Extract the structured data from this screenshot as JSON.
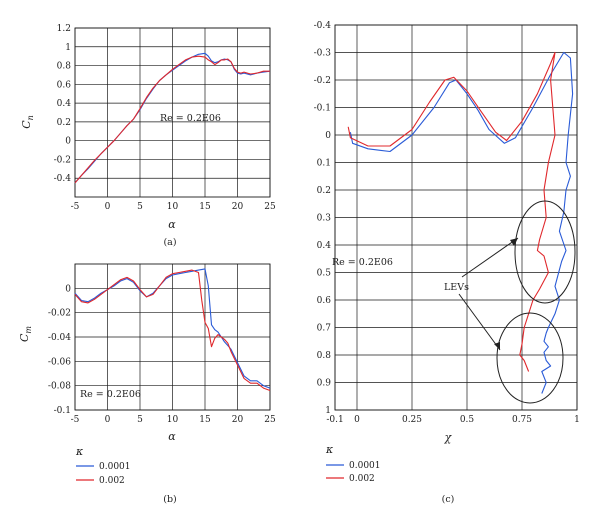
{
  "colors": {
    "blue": "#2a5bd7",
    "red": "#e0282c",
    "grid": "#1a1a1a",
    "text": "#222222"
  },
  "chart_data": [
    {
      "type": "line",
      "panel": "(a)",
      "xlabel": "α",
      "ylabel": "Cn",
      "ylabel_main": "C",
      "ylabel_sub": "n",
      "xlim": [
        -5,
        25
      ],
      "ylim": [
        -0.6,
        1.2
      ],
      "xticks": [
        -5,
        0,
        5,
        10,
        15,
        20,
        25
      ],
      "yticks": [
        -0.4,
        -0.2,
        0,
        0.2,
        0.4,
        0.6,
        0.8,
        1,
        1.2
      ],
      "ytick_labels": [
        "-0.4",
        "-0.2",
        "0",
        "0.2",
        "0.4",
        "0.6",
        "0.8",
        "1",
        "1.2"
      ],
      "annotation": "Re = 0.2E06",
      "series": [
        {
          "name": "0.0001",
          "color": "#2a5bd7",
          "x": [
            -5,
            -4,
            -3,
            -2,
            -1,
            0,
            1,
            2,
            3,
            4,
            5,
            6,
            7,
            8,
            9,
            10,
            11,
            12,
            13,
            14,
            15,
            15.5,
            16,
            16.5,
            17,
            17.5,
            18,
            18.5,
            19,
            19.5,
            20,
            20.5,
            21,
            22,
            23,
            24,
            25
          ],
          "y": [
            -0.45,
            -0.37,
            -0.3,
            -0.22,
            -0.14,
            -0.07,
            0.0,
            0.08,
            0.16,
            0.23,
            0.33,
            0.45,
            0.55,
            0.64,
            0.7,
            0.75,
            0.8,
            0.85,
            0.89,
            0.92,
            0.93,
            0.9,
            0.85,
            0.83,
            0.84,
            0.86,
            0.87,
            0.86,
            0.84,
            0.76,
            0.72,
            0.71,
            0.72,
            0.7,
            0.72,
            0.73,
            0.74
          ]
        },
        {
          "name": "0.002",
          "color": "#e0282c",
          "x": [
            -5,
            -4,
            -3,
            -2,
            -1,
            0,
            1,
            2,
            3,
            4,
            5,
            6,
            7,
            8,
            9,
            10,
            11,
            12,
            13,
            14,
            15,
            15.5,
            16,
            16.5,
            17,
            17.5,
            18,
            18.5,
            19,
            19.5,
            20,
            20.5,
            21,
            22,
            23,
            24,
            25
          ],
          "y": [
            -0.45,
            -0.37,
            -0.29,
            -0.21,
            -0.14,
            -0.07,
            0.0,
            0.08,
            0.16,
            0.23,
            0.34,
            0.46,
            0.56,
            0.64,
            0.7,
            0.76,
            0.81,
            0.86,
            0.89,
            0.9,
            0.89,
            0.86,
            0.84,
            0.81,
            0.83,
            0.86,
            0.86,
            0.87,
            0.84,
            0.77,
            0.73,
            0.72,
            0.73,
            0.71,
            0.72,
            0.74,
            0.74
          ]
        }
      ]
    },
    {
      "type": "line",
      "panel": "(b)",
      "xlabel": "α",
      "ylabel": "Cm",
      "ylabel_main": "C",
      "ylabel_sub": "m",
      "xlim": [
        -5,
        25
      ],
      "ylim": [
        -0.1,
        0.02
      ],
      "xticks": [
        -5,
        0,
        5,
        10,
        15,
        20,
        25
      ],
      "yticks": [
        0,
        -0.02,
        -0.04,
        -0.06,
        -0.08,
        -0.1
      ],
      "ytick_labels": [
        "0",
        "-0.02",
        "-0.04",
        "-0.06",
        "-0.08",
        "-0.1"
      ],
      "annotation": "Re = 0.2E06",
      "legend": {
        "title": "κ",
        "placement": "below",
        "entries": [
          "0.0001",
          "0.002"
        ]
      },
      "series": [
        {
          "name": "0.0001",
          "color": "#2a5bd7",
          "x": [
            -5,
            -4,
            -3,
            -2,
            -1,
            0,
            1,
            2,
            3,
            4,
            5,
            6,
            7,
            8,
            9,
            10,
            11,
            12,
            13,
            14,
            15,
            15.5,
            16,
            16.5,
            17,
            17.5,
            18,
            18.5,
            19,
            20,
            21,
            22,
            23,
            24,
            25
          ],
          "y": [
            -0.004,
            -0.01,
            -0.011,
            -0.008,
            -0.004,
            -0.001,
            0.002,
            0.006,
            0.008,
            0.005,
            -0.002,
            -0.007,
            -0.004,
            0.002,
            0.008,
            0.011,
            0.012,
            0.013,
            0.014,
            0.015,
            0.016,
            0.002,
            -0.03,
            -0.034,
            -0.036,
            -0.04,
            -0.044,
            -0.047,
            -0.05,
            -0.061,
            -0.072,
            -0.076,
            -0.076,
            -0.08,
            -0.082
          ]
        },
        {
          "name": "0.002",
          "color": "#e0282c",
          "x": [
            -5,
            -4,
            -3,
            -2,
            -1,
            0,
            1,
            2,
            3,
            4,
            5,
            6,
            7,
            8,
            9,
            10,
            11,
            12,
            13,
            14,
            14.5,
            15,
            15.5,
            16,
            16.5,
            17,
            17.5,
            18,
            18.5,
            19,
            20,
            21,
            22,
            23,
            24,
            25
          ],
          "y": [
            -0.005,
            -0.011,
            -0.012,
            -0.009,
            -0.005,
            -0.001,
            0.003,
            0.007,
            0.009,
            0.006,
            -0.001,
            -0.007,
            -0.005,
            0.002,
            0.009,
            0.012,
            0.013,
            0.014,
            0.015,
            0.013,
            -0.01,
            -0.028,
            -0.033,
            -0.048,
            -0.041,
            -0.038,
            -0.04,
            -0.042,
            -0.045,
            -0.052,
            -0.063,
            -0.074,
            -0.078,
            -0.078,
            -0.082,
            -0.084
          ]
        }
      ]
    },
    {
      "type": "line",
      "panel": "(c)",
      "xlabel": "χ",
      "ylabel": "",
      "xlim": [
        -0.1,
        1
      ],
      "ylim": [
        1,
        -0.4
      ],
      "xticks": [
        -0.1,
        0,
        0.25,
        0.5,
        0.75,
        1
      ],
      "xtick_labels": [
        "-0.1",
        "0",
        "0.25",
        "0.5",
        "0.75",
        "1"
      ],
      "yticks": [
        -0.4,
        -0.3,
        -0.2,
        -0.1,
        0,
        0.1,
        0.2,
        0.3,
        0.4,
        0.5,
        0.6,
        0.7,
        0.8,
        0.9,
        1
      ],
      "ytick_labels": [
        "-0.4",
        "-0.3",
        "-0.2",
        "-0.1",
        "0",
        "0.1",
        "0.2",
        "0.3",
        "0.4",
        "0.5",
        "0.6",
        "0.7",
        "0.8",
        "0.9",
        "1"
      ],
      "annotation": "Re = 0.2E06",
      "callout": "LEVs",
      "legend": {
        "title": "κ",
        "placement": "below",
        "entries": [
          "0.0001",
          "0.002"
        ]
      },
      "series": [
        {
          "name": "0.0001",
          "color": "#2a5bd7",
          "x": [
            -0.03,
            -0.02,
            0.05,
            0.15,
            0.25,
            0.35,
            0.42,
            0.45,
            0.5,
            0.55,
            0.6,
            0.67,
            0.72,
            0.8,
            0.88,
            0.94,
            0.97,
            0.98,
            0.96,
            0.95,
            0.97,
            0.95,
            0.94,
            0.92,
            0.95,
            0.93,
            0.9,
            0.92,
            0.9,
            0.87,
            0.86,
            0.85,
            0.87,
            0.85,
            0.86,
            0.88,
            0.84,
            0.86,
            0.85,
            0.84
          ],
          "y": [
            -0.01,
            0.03,
            0.05,
            0.06,
            0.0,
            -0.1,
            -0.19,
            -0.2,
            -0.15,
            -0.09,
            -0.02,
            0.03,
            0.01,
            -0.1,
            -0.22,
            -0.3,
            -0.28,
            -0.15,
            0.0,
            0.1,
            0.15,
            0.2,
            0.28,
            0.35,
            0.42,
            0.46,
            0.55,
            0.6,
            0.65,
            0.7,
            0.72,
            0.75,
            0.77,
            0.79,
            0.82,
            0.84,
            0.86,
            0.9,
            0.92,
            0.94
          ]
        },
        {
          "name": "0.002",
          "color": "#e0282c",
          "x": [
            -0.04,
            -0.03,
            0.05,
            0.15,
            0.25,
            0.33,
            0.4,
            0.44,
            0.5,
            0.56,
            0.63,
            0.68,
            0.75,
            0.82,
            0.88,
            0.9,
            0.88,
            0.9,
            0.87,
            0.85,
            0.86,
            0.83,
            0.82,
            0.85,
            0.87,
            0.83,
            0.8,
            0.78,
            0.76,
            0.75,
            0.74,
            0.76,
            0.77,
            0.78
          ],
          "y": [
            -0.03,
            0.01,
            0.04,
            0.04,
            -0.02,
            -0.12,
            -0.2,
            -0.21,
            -0.16,
            -0.09,
            -0.01,
            0.02,
            -0.05,
            -0.15,
            -0.26,
            -0.3,
            -0.2,
            0.0,
            0.1,
            0.2,
            0.3,
            0.38,
            0.42,
            0.44,
            0.5,
            0.56,
            0.6,
            0.65,
            0.7,
            0.76,
            0.8,
            0.82,
            0.84,
            0.86
          ]
        }
      ]
    }
  ]
}
